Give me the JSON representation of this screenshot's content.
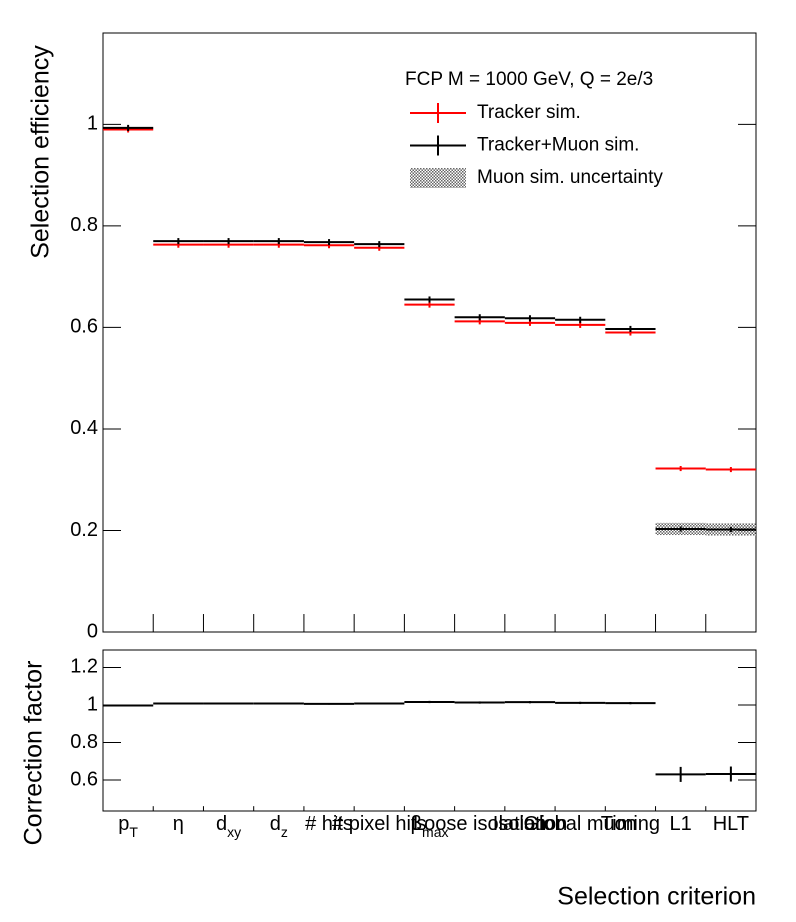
{
  "chart_data": [
    {
      "type": "errorbar",
      "ylabel": "Selection efficiency",
      "ylim": [
        0,
        1.18
      ],
      "yticks": [
        0,
        0.2,
        0.4,
        0.6,
        0.8,
        1
      ],
      "legend_header": "FCP M = 1000 GeV, Q = 2e/3",
      "legend": "top-right",
      "series": [
        {
          "name": "Tracker sim.",
          "color": "#ff0000",
          "values": [
            0.99,
            0.763,
            0.763,
            0.763,
            0.762,
            0.757,
            0.645,
            0.612,
            0.609,
            0.605,
            0.59,
            0.322,
            0.32
          ],
          "errors": [
            0.006,
            0.006,
            0.006,
            0.006,
            0.006,
            0.006,
            0.006,
            0.006,
            0.006,
            0.006,
            0.006,
            0.005,
            0.005
          ]
        },
        {
          "name": "Tracker+Muon sim.",
          "color": "#000000",
          "values": [
            0.993,
            0.77,
            0.77,
            0.77,
            0.768,
            0.764,
            0.655,
            0.62,
            0.618,
            0.615,
            0.597,
            0.203,
            0.202
          ],
          "errors": [
            0.006,
            0.006,
            0.006,
            0.006,
            0.006,
            0.006,
            0.006,
            0.006,
            0.006,
            0.006,
            0.006,
            0.005,
            0.005
          ]
        }
      ],
      "band": {
        "name": "Muon sim. uncertainty",
        "series": 1,
        "errors": [
          null,
          null,
          null,
          null,
          null,
          null,
          null,
          null,
          null,
          null,
          null,
          0.012,
          0.012
        ]
      }
    },
    {
      "type": "errorbar",
      "ylabel": "Correction factor",
      "xlabel": "Selection criterion",
      "categories": [
        "p",
        "η",
        "d",
        "d",
        "# hits",
        "# pixel hits",
        "β",
        "Loose isolation",
        "Isolation",
        "Global muon",
        "Timing",
        "L1",
        "HLT"
      ],
      "category_subscripts": [
        "T",
        null,
        "xy",
        "z",
        null,
        null,
        "max",
        null,
        null,
        null,
        null,
        null,
        null
      ],
      "ylim": [
        0.435,
        1.293
      ],
      "yticks": [
        0.6,
        0.8,
        1,
        1.2
      ],
      "series": [
        {
          "color": "#000000",
          "values": [
            0.997,
            1.008,
            1.008,
            1.008,
            1.006,
            1.008,
            1.016,
            1.013,
            1.015,
            1.011,
            1.01,
            0.63,
            0.632
          ],
          "errors": [
            0.004,
            0.004,
            0.004,
            0.004,
            0.004,
            0.004,
            0.006,
            0.006,
            0.006,
            0.006,
            0.006,
            0.04,
            0.04
          ]
        }
      ]
    }
  ]
}
